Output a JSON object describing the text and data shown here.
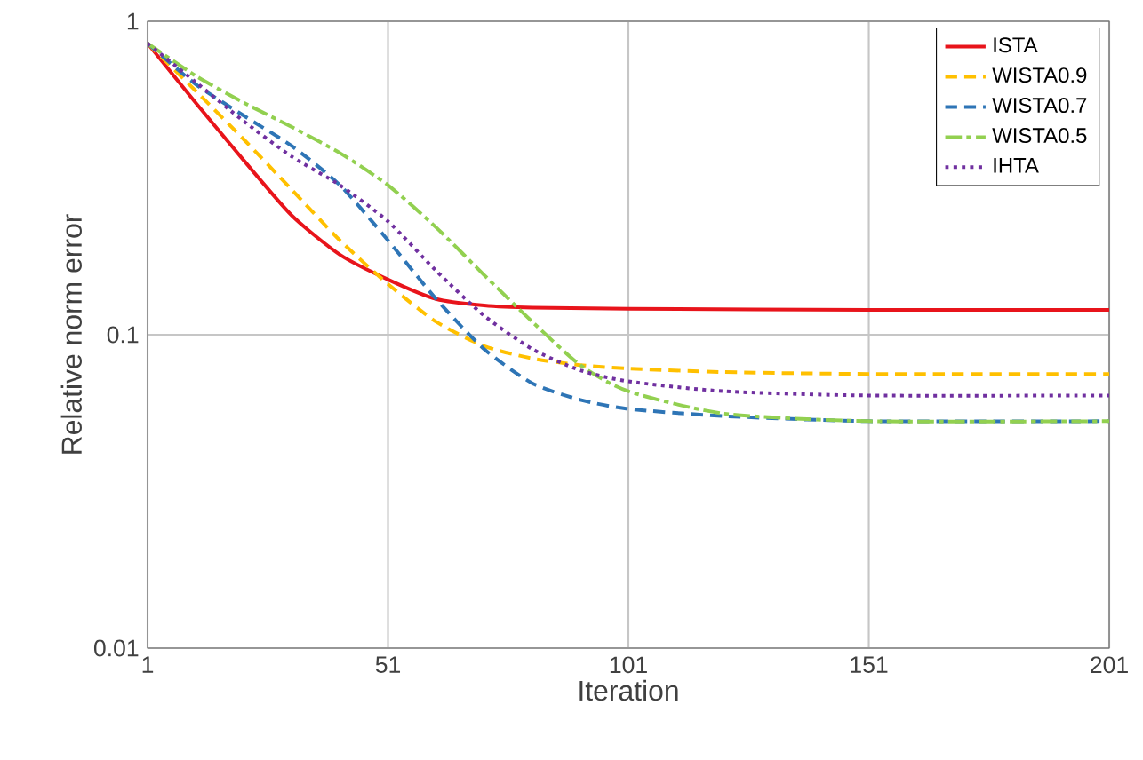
{
  "chart_data": {
    "type": "line",
    "xlabel": "Iteration",
    "ylabel": "Relative norm error",
    "log": "y",
    "grid": true,
    "legend": "top right",
    "xlim": [
      1,
      201
    ],
    "xticks": [
      1,
      51,
      101,
      151,
      201
    ],
    "ylim": [
      0.01,
      1
    ],
    "yticks": [
      0.01,
      0.1,
      1
    ],
    "series": [
      {
        "name": "ISTA",
        "color": "#e8141b",
        "line_style": "solid",
        "x": [
          1,
          11,
          21,
          31,
          41,
          51,
          61,
          71,
          81,
          101,
          151,
          201
        ],
        "values": [
          0.85,
          0.55,
          0.36,
          0.24,
          0.18,
          0.15,
          0.13,
          0.124,
          0.122,
          0.121,
          0.12,
          0.12
        ]
      },
      {
        "name": "WISTA0.9",
        "color": "#ffc000",
        "line_style": "dashed",
        "x": [
          1,
          11,
          21,
          31,
          41,
          51,
          61,
          71,
          81,
          91,
          101,
          121,
          151,
          201
        ],
        "values": [
          0.85,
          0.6,
          0.42,
          0.29,
          0.2,
          0.145,
          0.11,
          0.092,
          0.084,
          0.08,
          0.078,
          0.076,
          0.075,
          0.075
        ]
      },
      {
        "name": "WISTA0.7",
        "color": "#2e75b6",
        "line_style": "dashed",
        "x": [
          1,
          11,
          21,
          31,
          41,
          51,
          61,
          71,
          81,
          91,
          101,
          121,
          151,
          201
        ],
        "values": [
          0.85,
          0.63,
          0.5,
          0.4,
          0.3,
          0.2,
          0.13,
          0.09,
          0.07,
          0.062,
          0.058,
          0.055,
          0.053,
          0.053
        ]
      },
      {
        "name": "WISTA0.5",
        "color": "#92d050",
        "line_style": "dashdot",
        "x": [
          1,
          11,
          21,
          31,
          41,
          51,
          61,
          71,
          81,
          91,
          101,
          121,
          151,
          201
        ],
        "values": [
          0.85,
          0.67,
          0.55,
          0.46,
          0.38,
          0.3,
          0.22,
          0.155,
          0.11,
          0.08,
          0.066,
          0.056,
          0.053,
          0.053
        ]
      },
      {
        "name": "IHTA",
        "color": "#7030a0",
        "line_style": "dotted",
        "x": [
          1,
          11,
          21,
          31,
          41,
          51,
          61,
          71,
          81,
          91,
          101,
          121,
          151,
          201
        ],
        "values": [
          0.85,
          0.64,
          0.48,
          0.37,
          0.3,
          0.23,
          0.16,
          0.115,
          0.09,
          0.077,
          0.071,
          0.066,
          0.064,
          0.064
        ]
      }
    ]
  }
}
